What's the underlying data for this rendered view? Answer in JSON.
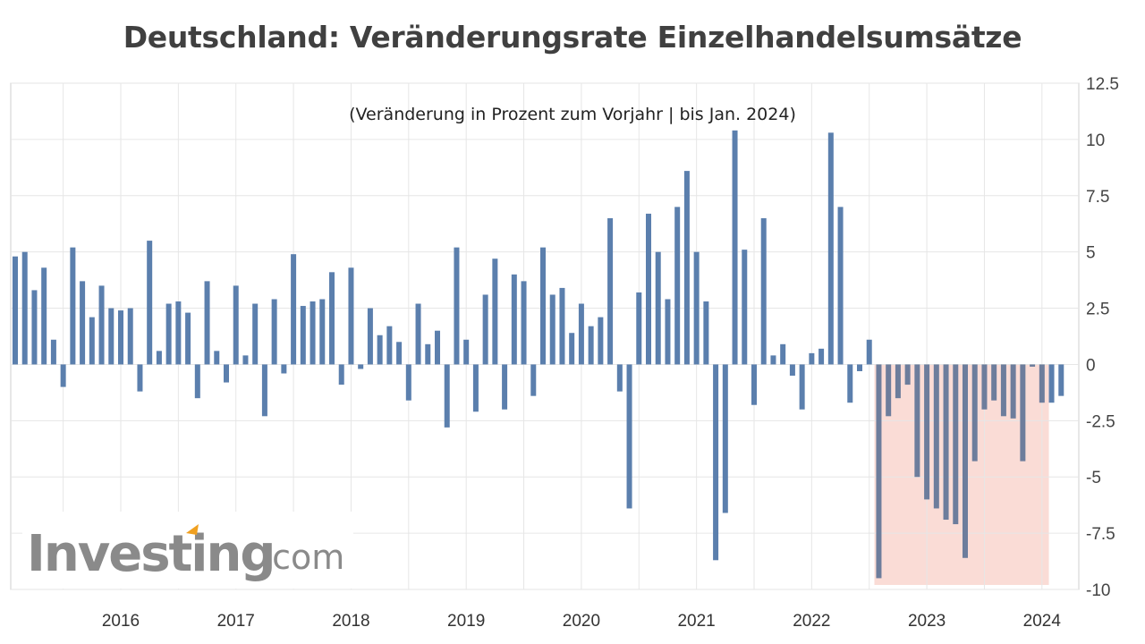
{
  "title": "Deutschland: Veränderungsrate Einzelhandelsumsätze",
  "subtitle": "(Veränderung in Prozent zum Vorjahr | bis Jan. 2024)",
  "logo": {
    "main": "Investing",
    "suffix": ".com"
  },
  "colors": {
    "bar": "#5b7fad",
    "bar_highlight": "#6d7d9c",
    "highlight_fill": "#fadcd6",
    "grid": "#e6e6e6",
    "logo_accent": "#f0a020"
  },
  "chart_data": {
    "type": "bar",
    "y_axis_position": "right",
    "ylim": [
      -10,
      12.5
    ],
    "yticks": [
      "12.5",
      "10",
      "7.5",
      "5",
      "2.5",
      "0",
      "-2.5",
      "-5",
      "-7.5",
      "-10"
    ],
    "ytick_values": [
      12.5,
      10,
      7.5,
      5,
      2.5,
      0,
      -2.5,
      -5,
      -7.5,
      -10
    ],
    "xtick_labels": [
      "2016",
      "2017",
      "2018",
      "2019",
      "2020",
      "2021",
      "2022",
      "2023",
      "2024"
    ],
    "start": "2015-02",
    "end": "2024-01",
    "highlight_range": [
      "2022-08",
      "2024-01"
    ],
    "grid": true,
    "values": [
      4.8,
      5.0,
      3.3,
      4.3,
      1.1,
      -1.0,
      5.2,
      3.7,
      2.1,
      3.5,
      2.5,
      2.4,
      2.5,
      -1.2,
      5.5,
      0.6,
      2.7,
      2.8,
      2.3,
      -1.5,
      3.7,
      0.6,
      -0.8,
      3.5,
      0.4,
      2.7,
      -2.3,
      2.9,
      -0.4,
      4.9,
      2.6,
      2.8,
      2.9,
      4.1,
      -0.9,
      4.3,
      -0.2,
      2.5,
      1.3,
      1.7,
      1.0,
      -1.6,
      2.7,
      0.9,
      1.5,
      -2.8,
      5.2,
      1.1,
      -2.1,
      3.1,
      4.7,
      -2.0,
      4.0,
      3.7,
      -1.4,
      5.2,
      3.1,
      3.4,
      1.4,
      2.7,
      1.7,
      2.1,
      6.5,
      -1.2,
      -6.4,
      3.2,
      6.7,
      5.0,
      2.9,
      7.0,
      8.6,
      5.0,
      2.8,
      -8.7,
      -6.6,
      10.4,
      5.1,
      -1.8,
      6.5,
      0.4,
      0.9,
      -0.5,
      -2.0,
      0.5,
      0.7,
      10.3,
      7.0,
      -1.7,
      -0.3,
      1.1,
      -9.5,
      -2.3,
      -1.5,
      -0.9,
      -5.0,
      -6.0,
      -6.4,
      -6.9,
      -7.1,
      -8.6,
      -4.3,
      -2.0,
      -1.6,
      -2.3,
      -2.4,
      -4.3,
      -0.1,
      -1.7,
      -1.7,
      -1.4
    ]
  }
}
